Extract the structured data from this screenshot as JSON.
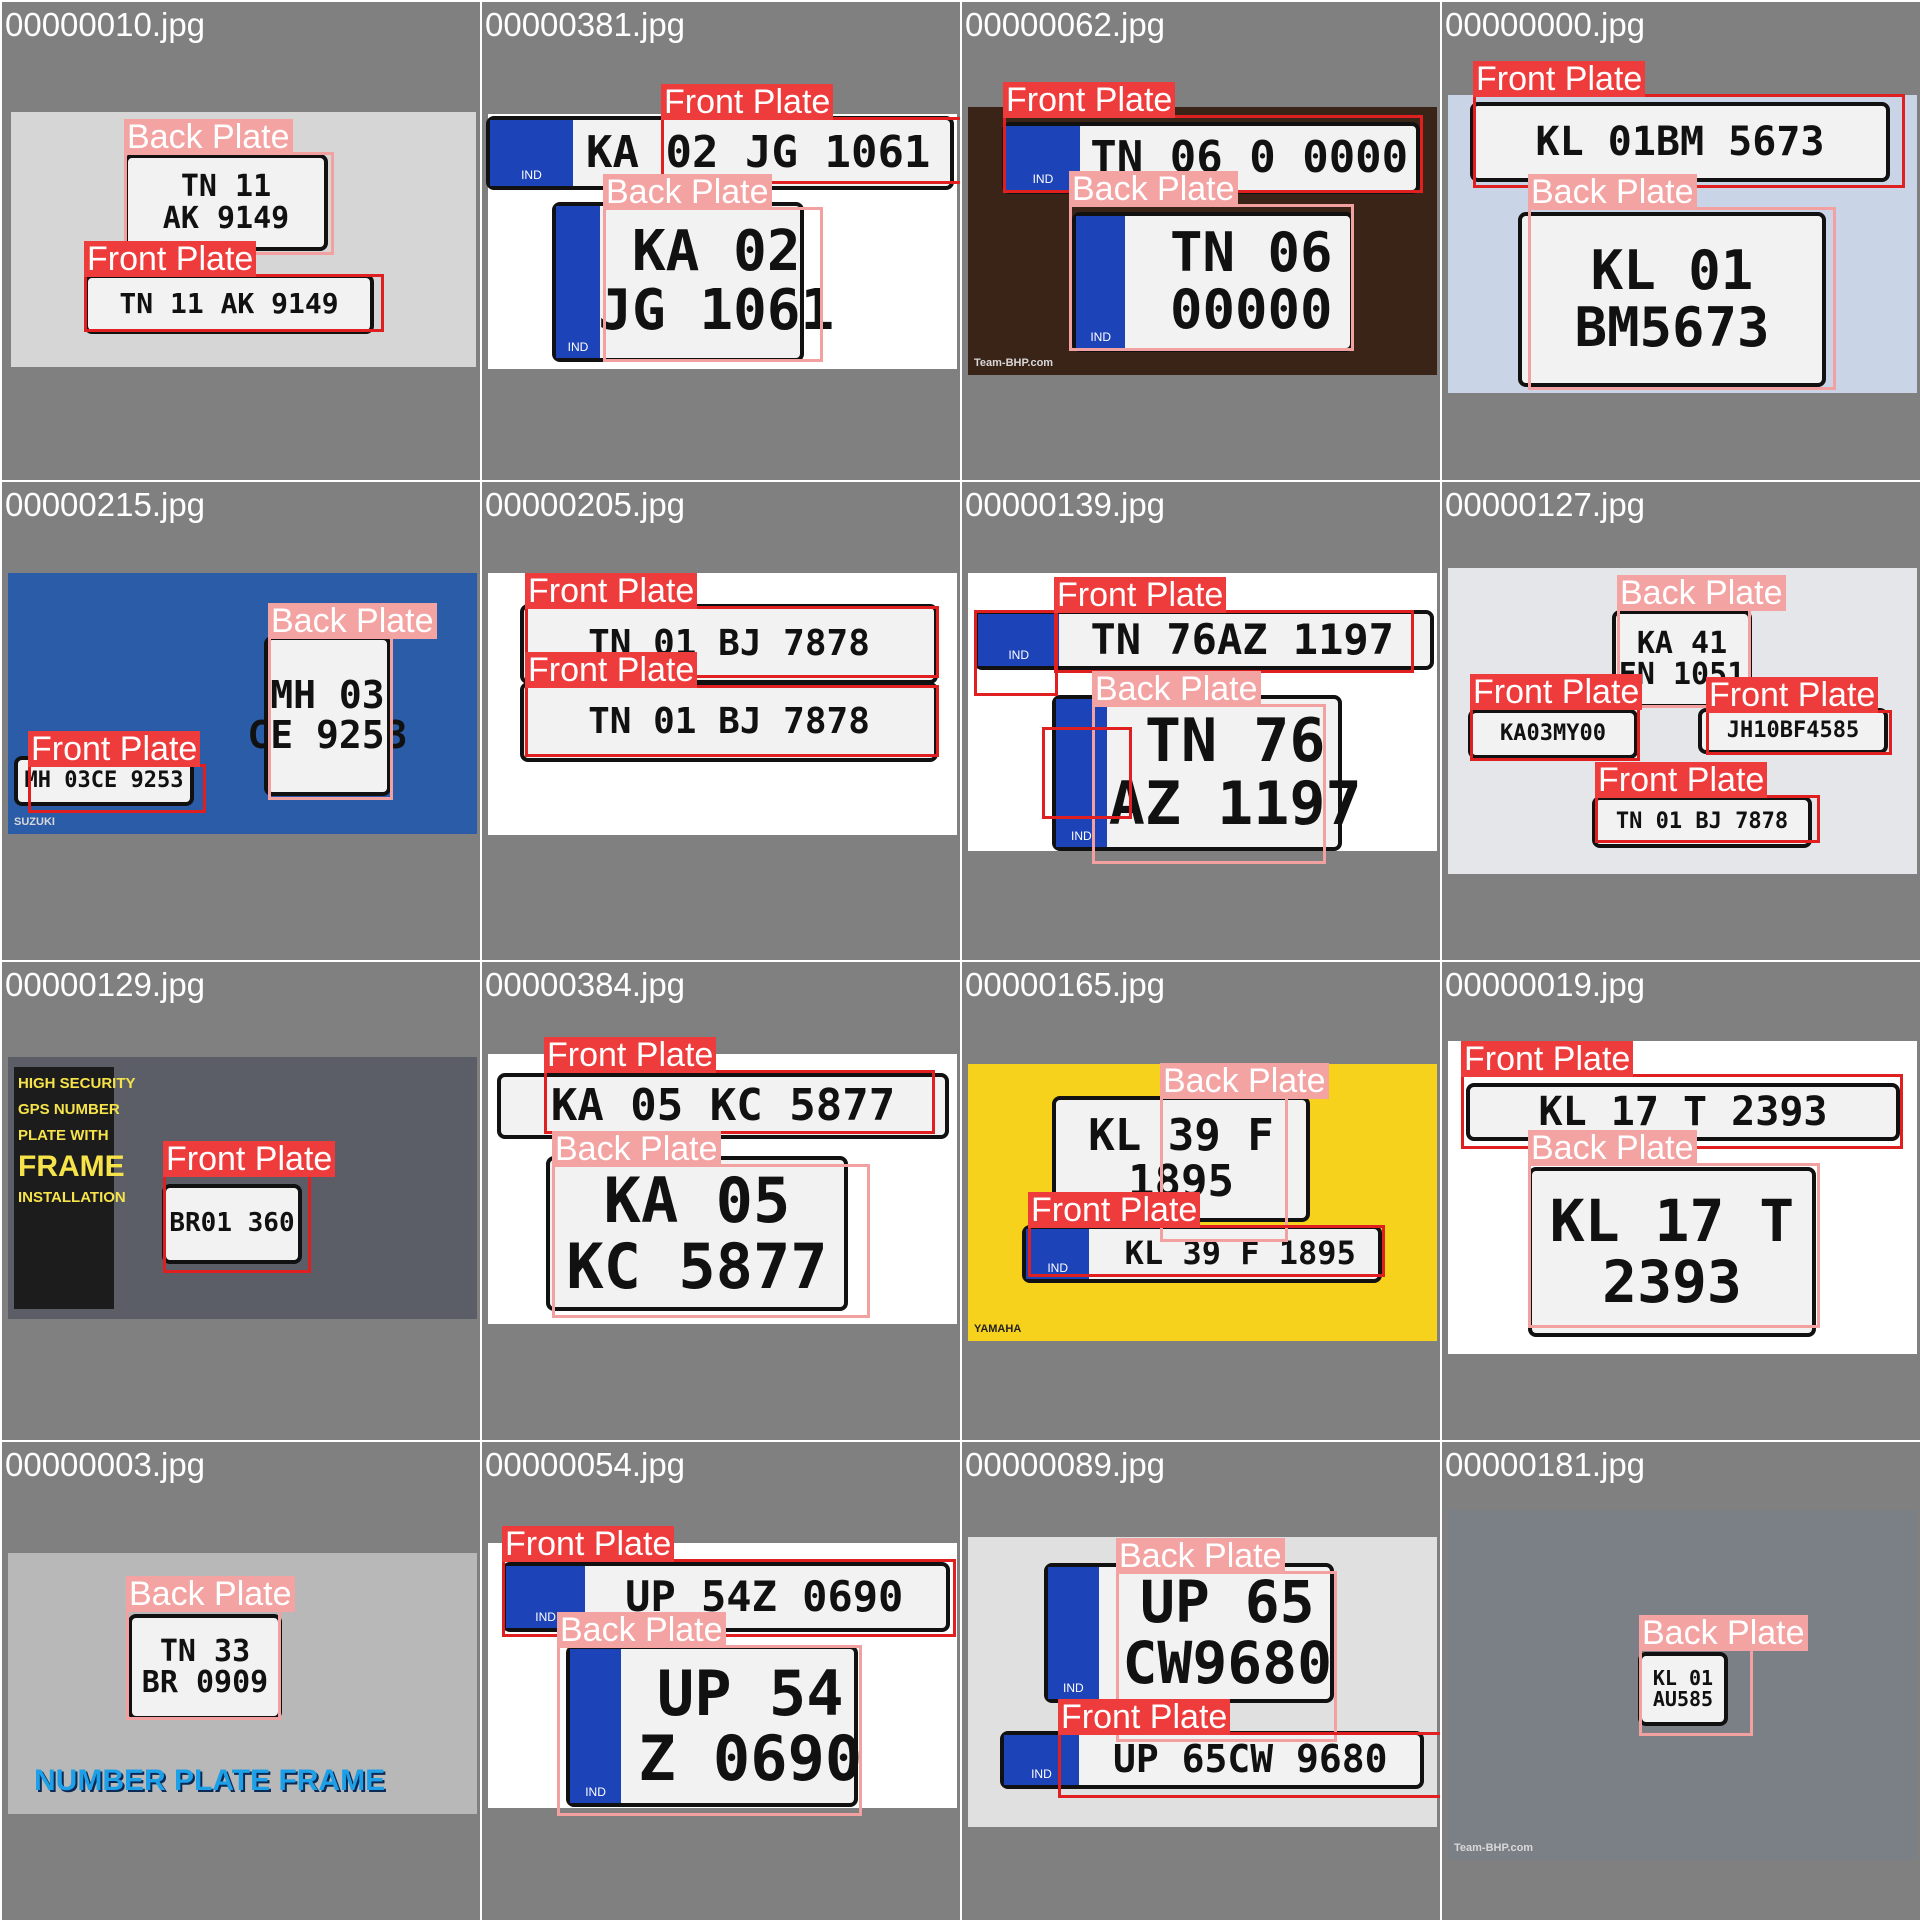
{
  "labels": {
    "front": "Front Plate",
    "back": "Back Plate"
  },
  "colors": {
    "front_box": "#e02020",
    "back_box": "#f2a0a0",
    "cell_bg": "#808080"
  },
  "cells": [
    {
      "filename": "00000010.jpg",
      "bg": "#d6d6d6",
      "plates": [
        "TN 11\nAK 9149",
        "TN 11 AK 9149"
      ],
      "labels": [
        "Back Plate",
        "Front Plate"
      ]
    },
    {
      "filename": "00000381.jpg",
      "bg": "#ffffff",
      "plates": [
        "KA 02 JG 1061",
        "KA 02\nJG 1061"
      ],
      "ind": [
        "IND",
        "IND"
      ],
      "labels": [
        "Front Plate",
        "Back Plate"
      ]
    },
    {
      "filename": "00000062.jpg",
      "bg": "#3a2418",
      "plates": [
        "TN 06 0 0000",
        "TN 06\n00000"
      ],
      "ind": [
        "IND",
        "IND"
      ],
      "labels": [
        "Front Plate",
        "Back Plate"
      ],
      "caption": "Team-BHP.com"
    },
    {
      "filename": "00000000.jpg",
      "bg": "#c9d4e6",
      "plates": [
        "KL 01BM 5673",
        "KL 01\nBM5673"
      ],
      "labels": [
        "Front Plate",
        "Back Plate"
      ]
    },
    {
      "filename": "00000215.jpg",
      "bg": "#2b5ca8",
      "plates": [
        "MH 03\nCE 9253",
        "MH 03CE 9253"
      ],
      "labels": [
        "Back Plate",
        "Front Plate"
      ],
      "caption": "SUZUKI"
    },
    {
      "filename": "00000205.jpg",
      "bg": "#ffffff",
      "plates": [
        "TN 01 BJ 7878",
        "TN 01 BJ 7878"
      ],
      "labels": [
        "Front Plate",
        "Front Plate"
      ]
    },
    {
      "filename": "00000139.jpg",
      "bg": "#ffffff",
      "plates": [
        "TN 76AZ 1197",
        "TN 76\nAZ 1197"
      ],
      "ind": [
        "IND",
        "IND"
      ],
      "labels": [
        "Front Plate",
        "Back Plate"
      ]
    },
    {
      "filename": "00000127.jpg",
      "bg": "#e4e6ea",
      "plates": [
        "KA 41\nEN 1051",
        "KA03MY00",
        "JH10BF4585",
        "TN 01 BJ 7878"
      ],
      "labels": [
        "Back Plate",
        "Front Plate",
        "Front Plate",
        "Front Plate"
      ]
    },
    {
      "filename": "00000129.jpg",
      "bg": "#5b5e66",
      "plates": [
        "BR01 360"
      ],
      "labels": [
        "Front Plate"
      ],
      "banner": [
        "HIGH SECURITY",
        "GPS NUMBER",
        "PLATE WITH",
        "FRAME",
        "INSTALLATION"
      ]
    },
    {
      "filename": "00000384.jpg",
      "bg": "#ffffff",
      "plates": [
        "KA 05 KC 5877",
        "KA 05\nKC 5877"
      ],
      "labels": [
        "Front Plate",
        "Back Plate"
      ]
    },
    {
      "filename": "00000165.jpg",
      "bg": "#f7d21c",
      "plates": [
        "KL 39 F\n1895",
        "KL 39 F 1895"
      ],
      "ind": [
        "",
        "IND"
      ],
      "labels": [
        "Back Plate",
        "Front Plate"
      ],
      "caption": "YAMAHA"
    },
    {
      "filename": "00000019.jpg",
      "bg": "#ffffff",
      "plates": [
        "KL 17 T 2393",
        "KL 17 T\n2393"
      ],
      "labels": [
        "Front Plate",
        "Back Plate"
      ]
    },
    {
      "filename": "00000003.jpg",
      "bg": "#b8b8b8",
      "plates": [
        "TN 33\nBR 0909"
      ],
      "labels": [
        "Back Plate"
      ],
      "banner": [
        "NUMBER PLATE FRAME"
      ]
    },
    {
      "filename": "00000054.jpg",
      "bg": "#ffffff",
      "plates": [
        "UP 54Z 0690",
        "UP 54\nZ 0690"
      ],
      "ind": [
        "IND",
        "IND"
      ],
      "labels": [
        "Front Plate",
        "Back Plate"
      ]
    },
    {
      "filename": "00000089.jpg",
      "bg": "#e0e0e0",
      "plates": [
        "UP 65\nCW9680",
        "UP 65CW 9680"
      ],
      "ind": [
        "IND",
        "IND"
      ],
      "labels": [
        "Back Plate",
        "Front Plate"
      ]
    },
    {
      "filename": "00000181.jpg",
      "bg": "#7b7f86",
      "plates": [
        "KL 01\nAU585"
      ],
      "labels": [
        "Back Plate"
      ],
      "caption": "Team-BHP.com"
    }
  ]
}
